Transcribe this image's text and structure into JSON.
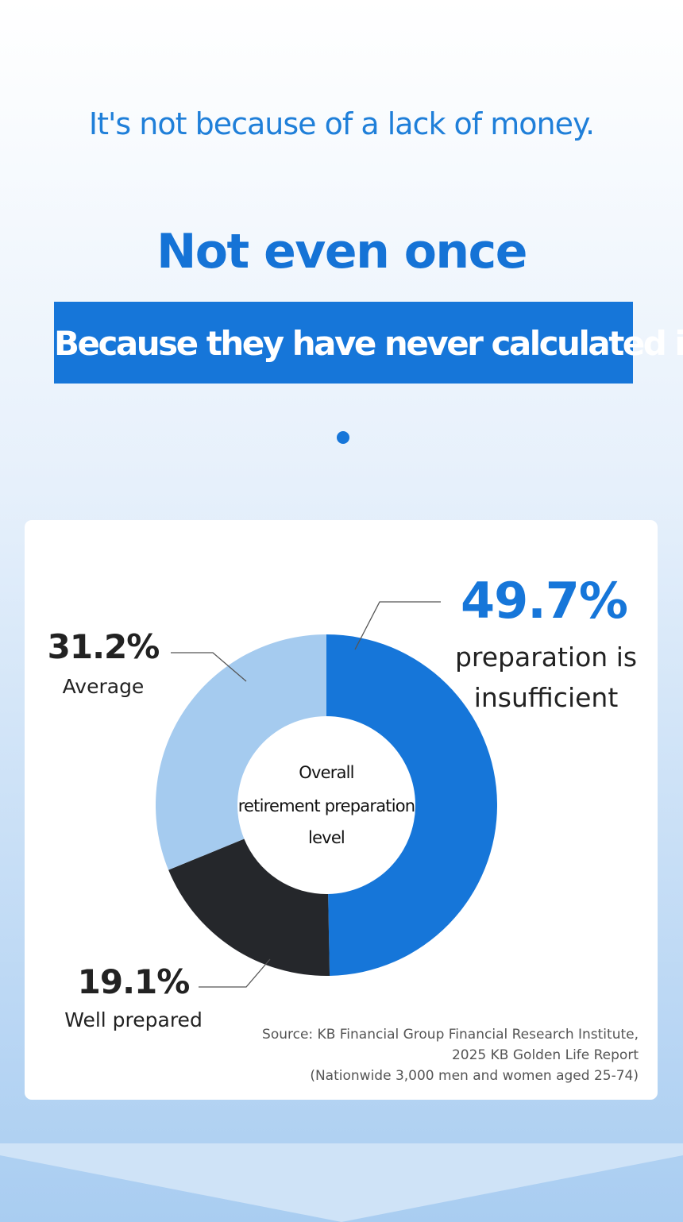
{
  "header": {
    "subtitle": "It's not because of a lack of money.",
    "title": "Not even once",
    "banner": "Because they have never calculated it"
  },
  "chart_data": {
    "type": "pie",
    "donut": true,
    "center_label": [
      "Overall",
      "retirement preparation",
      "level"
    ],
    "categories": [
      "preparation is insufficient",
      "Well prepared",
      "Average"
    ],
    "values": [
      49.7,
      19.1,
      31.2
    ],
    "value_labels": [
      "49.7%",
      "19.1%",
      "31.2%"
    ],
    "colors": [
      "#1676d9",
      "#25272b",
      "#a5cbef"
    ],
    "source": [
      "Source: KB Financial Group Financial Research Institute,",
      "2025 KB Golden Life Report",
      "(Nationwide 3,000 men and women aged 25-74)"
    ]
  }
}
